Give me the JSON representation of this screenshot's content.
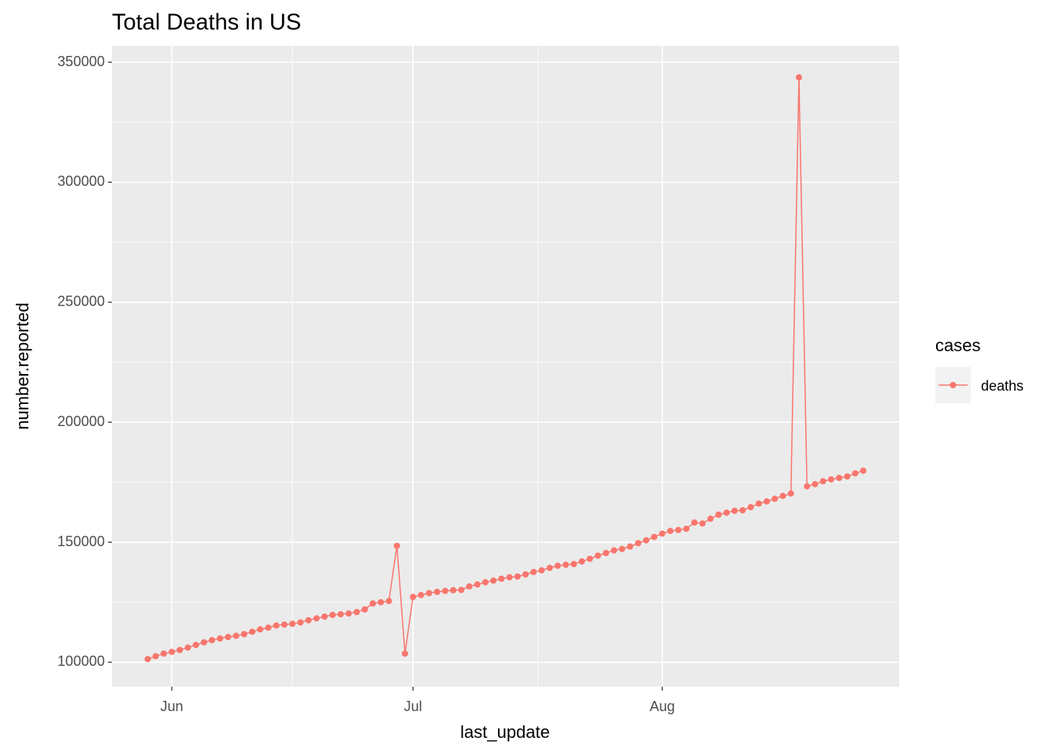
{
  "chart_data": {
    "type": "line",
    "title": "Total Deaths in US",
    "x_label": "last_update",
    "y_label": "number.reported",
    "legend_title": "cases",
    "x": [
      -3,
      -2,
      -1,
      0,
      1,
      2,
      3,
      4,
      5,
      6,
      7,
      8,
      9,
      10,
      11,
      12,
      13,
      14,
      15,
      16,
      17,
      18,
      19,
      20,
      21,
      22,
      23,
      24,
      25,
      26,
      27,
      28,
      29,
      30,
      31,
      32,
      33,
      34,
      35,
      36,
      37,
      38,
      39,
      40,
      41,
      42,
      43,
      44,
      45,
      46,
      47,
      48,
      49,
      50,
      51,
      52,
      53,
      54,
      55,
      56,
      57,
      58,
      59,
      60,
      61,
      62,
      63,
      64,
      65,
      66,
      67,
      68,
      69,
      70,
      71,
      72,
      73,
      74,
      75,
      76,
      77,
      78,
      79,
      80,
      81,
      82,
      83,
      84,
      85,
      86
    ],
    "series": [
      {
        "name": "deaths",
        "color": "#f8766d",
        "values": [
          101300,
          102500,
          103600,
          104300,
          105100,
          106100,
          107200,
          108300,
          109200,
          109900,
          110500,
          111000,
          111700,
          112700,
          113700,
          114400,
          115300,
          115700,
          116000,
          116600,
          117500,
          118300,
          119000,
          119700,
          120000,
          120300,
          120900,
          122000,
          124500,
          125000,
          125500,
          148500,
          103600,
          127200,
          128000,
          128800,
          129300,
          129700,
          130000,
          130100,
          131600,
          132400,
          133300,
          134000,
          134800,
          135400,
          135700,
          136600,
          137600,
          138300,
          139300,
          140200,
          140600,
          140900,
          142000,
          143100,
          144400,
          145500,
          146600,
          147200,
          148200,
          149600,
          150800,
          152200,
          153600,
          154700,
          155100,
          155600,
          158200,
          157800,
          159800,
          161500,
          162300,
          163100,
          163300,
          164600,
          166100,
          167000,
          168100,
          169300,
          170300,
          343700,
          173300,
          174200,
          175400,
          176200,
          176800,
          177400,
          178700,
          179800
        ]
      }
    ],
    "xlim": [
      -7.45,
      90.45
    ],
    "xticks": [
      {
        "value": 0,
        "label": "Jun"
      },
      {
        "value": 30,
        "label": "Jul"
      },
      {
        "value": 61,
        "label": "Aug"
      }
    ],
    "ylim": [
      89800,
      356900
    ],
    "yticks": [
      100000,
      150000,
      200000,
      250000,
      300000,
      350000
    ],
    "grid": true
  }
}
